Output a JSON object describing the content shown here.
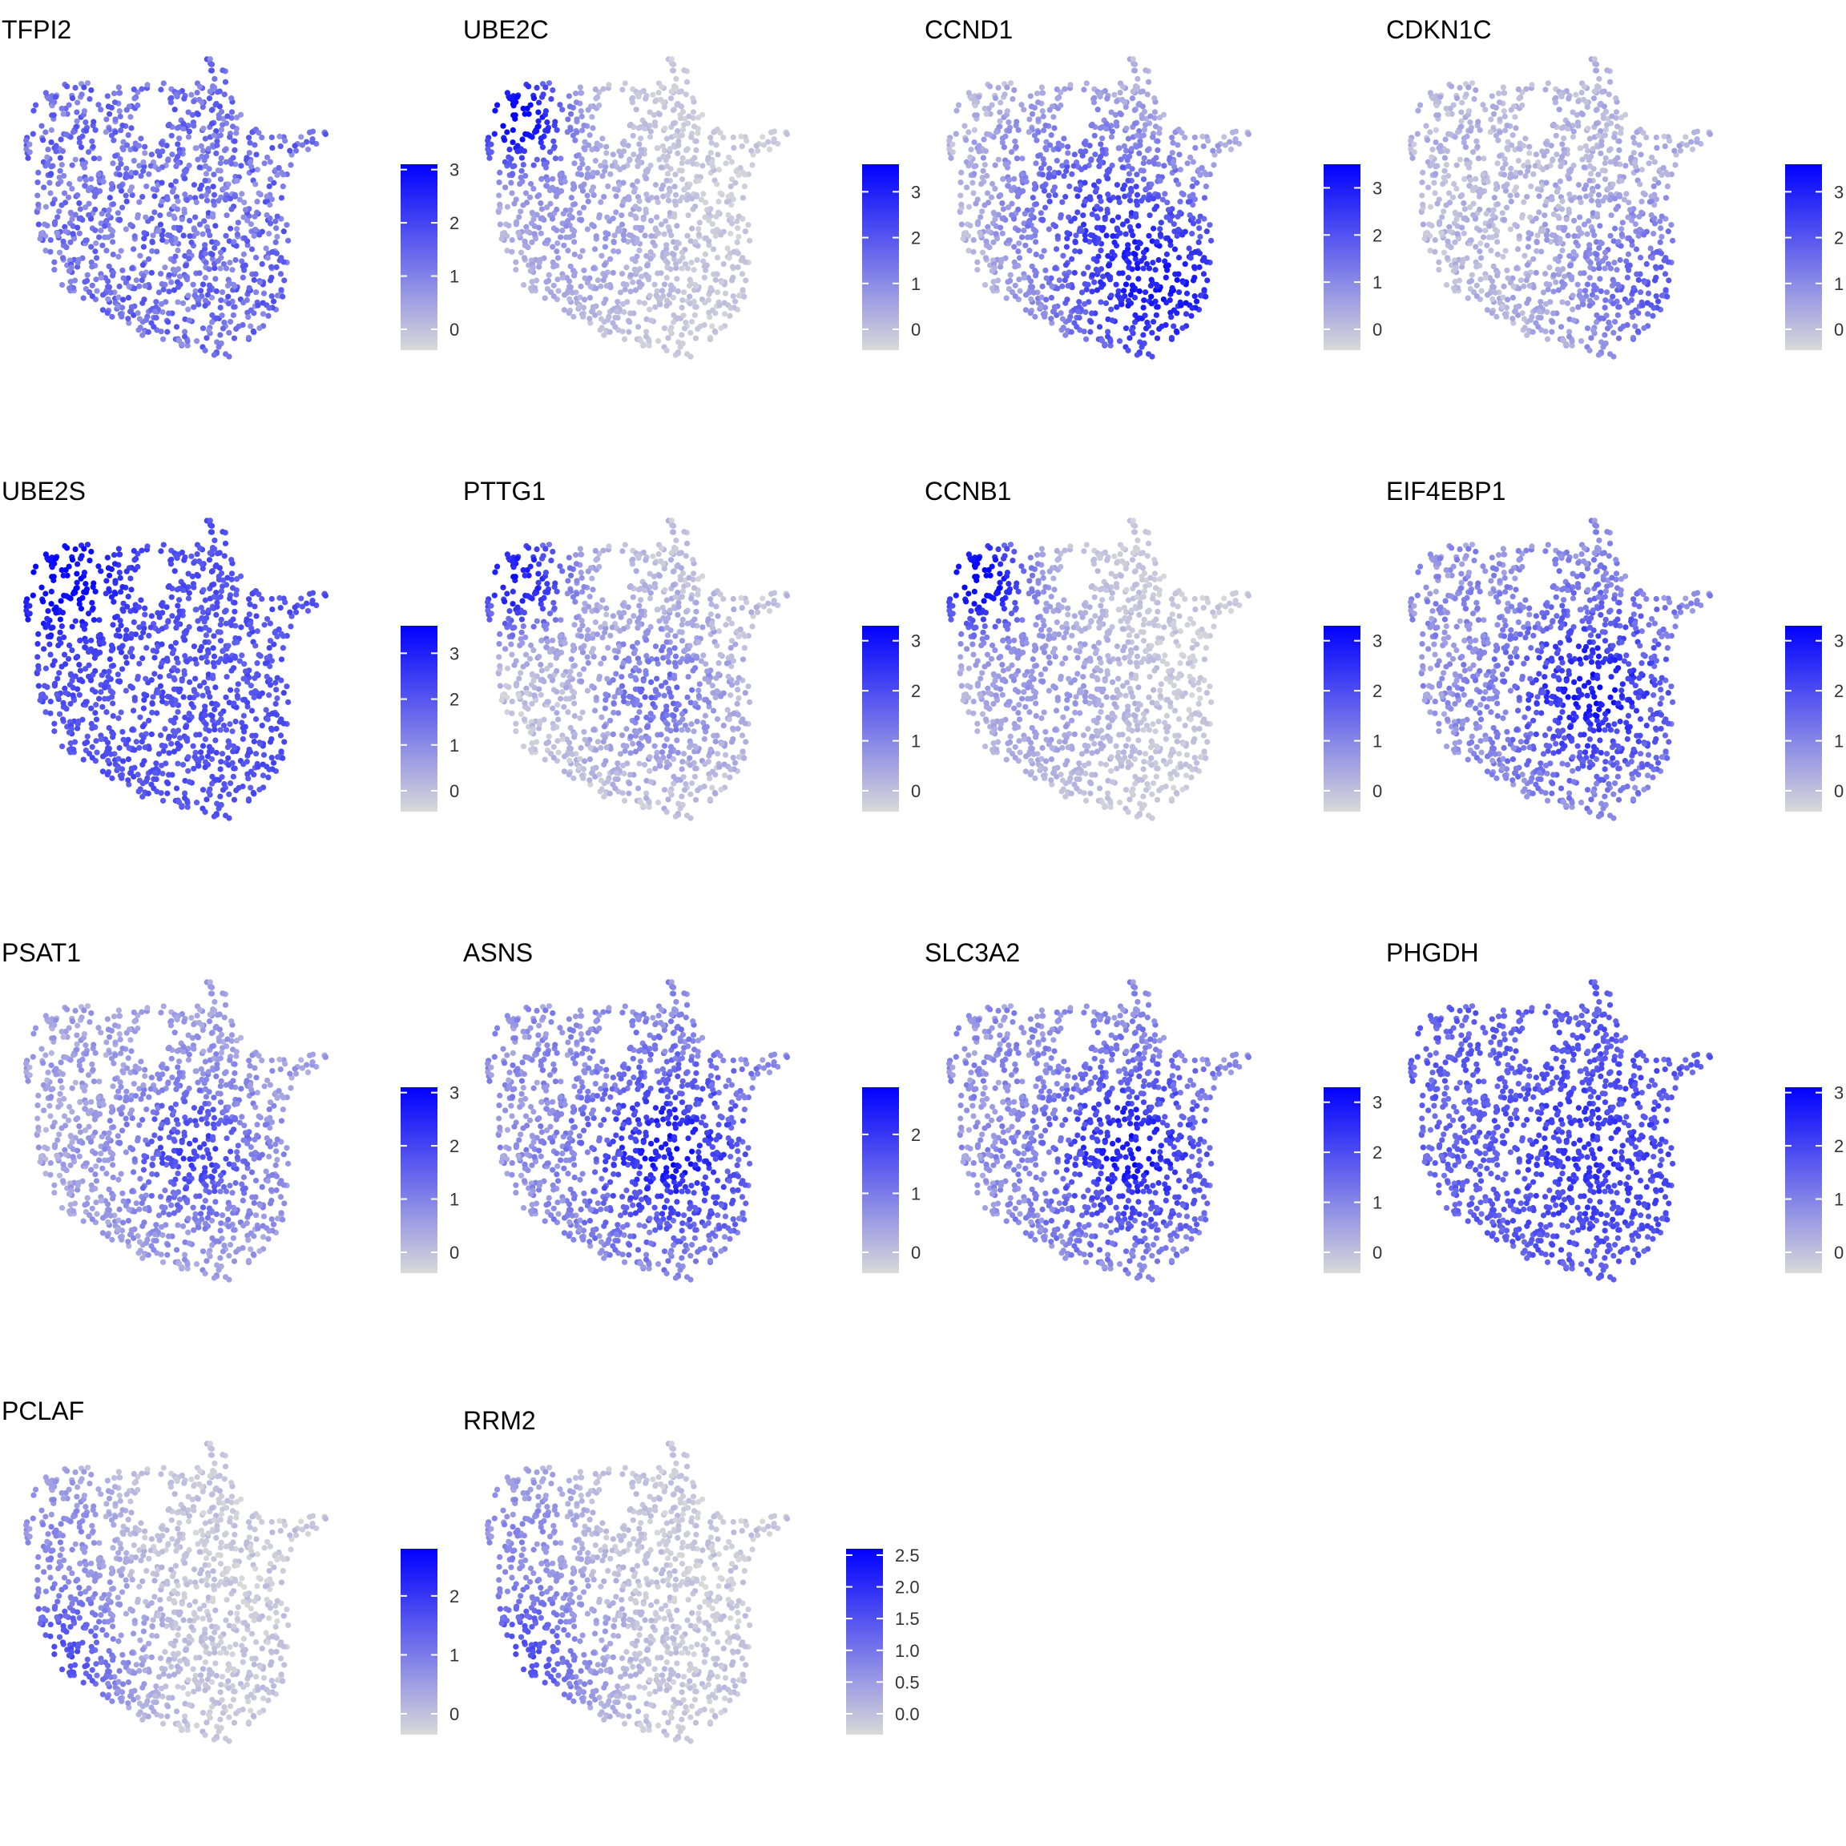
{
  "figure": {
    "low_color": "#d9d9d9",
    "high_color": "#0000ff"
  },
  "chart_data": [
    {
      "type": "scatter",
      "title": "TFPI2",
      "colorbar_ticks": [
        "0",
        "1",
        "2",
        "3"
      ],
      "max": 3.1,
      "pattern": "mid_mixed"
    },
    {
      "type": "scatter",
      "title": "UBE2C",
      "colorbar_ticks": [
        "0",
        "1",
        "2",
        "3"
      ],
      "max": 3.6,
      "pattern": "upper_left_high"
    },
    {
      "type": "scatter",
      "title": "CCND1",
      "colorbar_ticks": [
        "0",
        "1",
        "2",
        "3"
      ],
      "max": 3.5,
      "pattern": "lower_right_high"
    },
    {
      "type": "scatter",
      "title": "CDKN1C",
      "colorbar_ticks": [
        "0",
        "1",
        "2",
        "3"
      ],
      "max": 3.6,
      "pattern": "low_right"
    },
    {
      "type": "scatter",
      "title": "UBE2S",
      "colorbar_ticks": [
        "0",
        "1",
        "2",
        "3"
      ],
      "max": 3.6,
      "pattern": "broad_high_ul"
    },
    {
      "type": "scatter",
      "title": "PTTG1",
      "colorbar_ticks": [
        "0",
        "1",
        "2",
        "3"
      ],
      "max": 3.3,
      "pattern": "upper_left_mid"
    },
    {
      "type": "scatter",
      "title": "CCNB1",
      "colorbar_ticks": [
        "0",
        "1",
        "2",
        "3"
      ],
      "max": 3.3,
      "pattern": "upper_left_high"
    },
    {
      "type": "scatter",
      "title": "EIF4EBP1",
      "colorbar_ticks": [
        "0",
        "1",
        "2",
        "3"
      ],
      "max": 3.3,
      "pattern": "center_mid"
    },
    {
      "type": "scatter",
      "title": "PSAT1",
      "colorbar_ticks": [
        "0",
        "1",
        "2",
        "3"
      ],
      "max": 3.1,
      "pattern": "center_low"
    },
    {
      "type": "scatter",
      "title": "ASNS",
      "colorbar_ticks": [
        "0",
        "1",
        "2"
      ],
      "max": 2.8,
      "pattern": "center_mid"
    },
    {
      "type": "scatter",
      "title": "SLC3A2",
      "colorbar_ticks": [
        "0",
        "1",
        "2",
        "3"
      ],
      "max": 3.3,
      "pattern": "center_mid"
    },
    {
      "type": "scatter",
      "title": "PHGDH",
      "colorbar_ticks": [
        "0",
        "1",
        "2",
        "3"
      ],
      "max": 3.1,
      "pattern": "broad_mid"
    },
    {
      "type": "scatter",
      "title": "PCLAF",
      "colorbar_ticks": [
        "0",
        "1",
        "2"
      ],
      "max": 2.8,
      "pattern": "left_side"
    },
    {
      "type": "scatter",
      "title": "RRM2",
      "colorbar_ticks": [
        "0.0",
        "0.5",
        "1.0",
        "1.5",
        "2.0",
        "2.5"
      ],
      "max": 2.6,
      "pattern": "left_side"
    }
  ]
}
